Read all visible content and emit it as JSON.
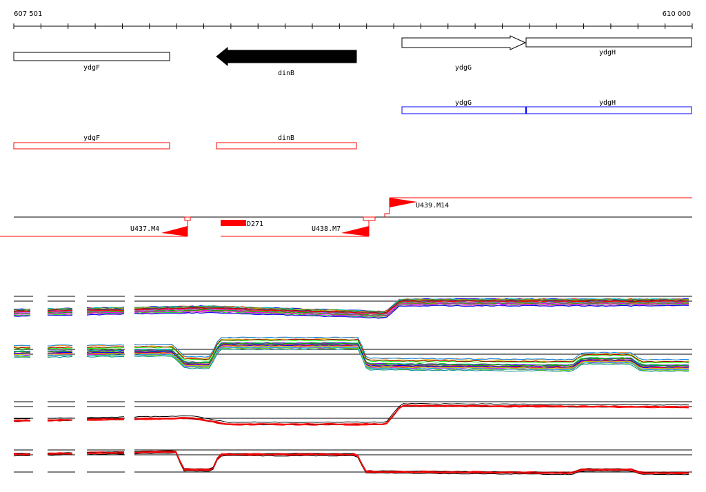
{
  "ruler": {
    "start_label": "607 501",
    "end_label": "610 000",
    "start_bp": 607501,
    "end_bp": 610000
  },
  "genes_top": [
    {
      "name": "ydgF",
      "style": "open-box"
    },
    {
      "name": "dinB",
      "style": "filled-arrow-left"
    },
    {
      "name": "ydgG",
      "style": "open-arrow-right"
    },
    {
      "name": "ydgH",
      "style": "open-box"
    }
  ],
  "genes_blue": [
    {
      "name": "ydgG"
    },
    {
      "name": "ydgH"
    }
  ],
  "genes_red": [
    {
      "name": "ydgF"
    },
    {
      "name": "dinB"
    }
  ],
  "transcript_features": [
    {
      "name": "U437.M4",
      "strand": "minus"
    },
    {
      "name": "D271",
      "strand": "block"
    },
    {
      "name": "U438.M7",
      "strand": "minus"
    },
    {
      "name": "U439.M14",
      "strand": "plus"
    }
  ],
  "tracks": [
    {
      "id": "track-1",
      "palette": "multicolor"
    },
    {
      "id": "track-2",
      "palette": "multicolor"
    },
    {
      "id": "track-3",
      "palette": "black-red"
    },
    {
      "id": "track-4",
      "palette": "black-red"
    }
  ],
  "colors": {
    "gene_outline": "#000000",
    "blue_gene": "#0000ff",
    "red_gene": "#ff0000",
    "feature_red": "#ff0000"
  }
}
